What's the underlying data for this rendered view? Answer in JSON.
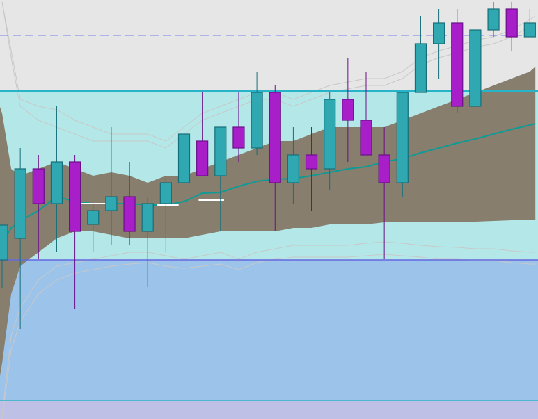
{
  "chart_data": {
    "type": "candlestick",
    "title": "",
    "xlabel": "",
    "ylabel": "",
    "x_index_range": [
      0,
      29.3
    ],
    "ylim": [
      0,
      60.3
    ],
    "grid": false,
    "colors": {
      "background": "#e6e6e6",
      "zone_upper": "#b4e8e8",
      "zone_lower": "#9cc4ea",
      "zone_bottom": "#bfc0e6",
      "zone_line_cyan": "#28b4c8",
      "zone_line_blue": "#6468e0",
      "band_fill": "#877e6e",
      "mid_line": "#0e9b96",
      "outer_guide": "#c8c8c8",
      "up_body": "#2fa8b2",
      "up_border": "#166e78",
      "down_body": "#a81ec8",
      "down_border": "#6a1088",
      "dashed_line": "#7b7ef0",
      "flat_segment": "#ffffff"
    },
    "horizontal_lines": [
      {
        "kind": "dashed",
        "y": 55.2
      },
      {
        "kind": "zone-top",
        "y": 47.2
      },
      {
        "kind": "zone-mid",
        "y": 22.9
      },
      {
        "kind": "zone-bottom",
        "y": 2.7
      }
    ],
    "candles": [
      {
        "x": 0,
        "open": 22.9,
        "high": 27.9,
        "low": 18.9,
        "close": 27.9
      },
      {
        "x": 1,
        "open": 26.0,
        "high": 39.0,
        "low": 12.9,
        "close": 36.0
      },
      {
        "x": 2,
        "open": 36.0,
        "high": 38.0,
        "low": 23.0,
        "close": 31.0
      },
      {
        "x": 3,
        "open": 31.0,
        "high": 45.0,
        "low": 24.0,
        "close": 37.0
      },
      {
        "x": 4,
        "open": 37.0,
        "high": 38.0,
        "low": 15.9,
        "close": 27.0
      },
      {
        "x": 5,
        "open": 28.0,
        "high": 31.0,
        "low": 24.0,
        "close": 30.0
      },
      {
        "x": 6,
        "open": 30.0,
        "high": 42.0,
        "low": 25.0,
        "close": 32.0
      },
      {
        "x": 7,
        "open": 32.0,
        "high": 37.0,
        "low": 25.0,
        "close": 27.0
      },
      {
        "x": 8,
        "open": 27.0,
        "high": 32.0,
        "low": 19.0,
        "close": 31.0
      },
      {
        "x": 9,
        "open": 31.0,
        "high": 35.0,
        "low": 24.0,
        "close": 34.0
      },
      {
        "x": 10,
        "open": 34.0,
        "high": 41.0,
        "low": 26.0,
        "close": 41.0
      },
      {
        "x": 11,
        "open": 40.0,
        "high": 47.0,
        "low": 35.0,
        "close": 35.0
      },
      {
        "x": 12,
        "open": 35.0,
        "high": 42.0,
        "low": 27.0,
        "close": 42.0
      },
      {
        "x": 13,
        "open": 42.0,
        "high": 47.0,
        "low": 37.0,
        "close": 39.0
      },
      {
        "x": 14,
        "open": 39.0,
        "high": 50.0,
        "low": 38.0,
        "close": 47.0
      },
      {
        "x": 15,
        "open": 47.0,
        "high": 48.0,
        "low": 27.0,
        "close": 34.0
      },
      {
        "x": 16,
        "open": 34.0,
        "high": 42.0,
        "low": 31.0,
        "close": 38.0
      },
      {
        "x": 17,
        "open": 38.0,
        "high": 42.0,
        "low": 30.0,
        "close": 36.0
      },
      {
        "x": 18,
        "open": 36.0,
        "high": 47.0,
        "low": 33.0,
        "close": 46.0
      },
      {
        "x": 19,
        "open": 46.0,
        "high": 52.0,
        "low": 37.0,
        "close": 43.0
      },
      {
        "x": 20,
        "open": 43.0,
        "high": 50.0,
        "low": 38.0,
        "close": 38.0
      },
      {
        "x": 21,
        "open": 38.0,
        "high": 42.0,
        "low": 23.0,
        "close": 34.0
      },
      {
        "x": 22,
        "open": 34.0,
        "high": 47.0,
        "low": 32.0,
        "close": 47.0
      },
      {
        "x": 23,
        "open": 47.0,
        "high": 58.0,
        "low": 47.0,
        "close": 54.0
      },
      {
        "x": 24,
        "open": 54.0,
        "high": 59.0,
        "low": 49.0,
        "close": 57.0
      },
      {
        "x": 25,
        "open": 57.0,
        "high": 59.0,
        "low": 44.0,
        "close": 45.0
      },
      {
        "x": 26,
        "open": 45.0,
        "high": 56.0,
        "low": 45.0,
        "close": 56.0
      },
      {
        "x": 27,
        "open": 56.0,
        "high": 60.0,
        "low": 55.0,
        "close": 59.0
      },
      {
        "x": 28,
        "open": 59.0,
        "high": 60.0,
        "low": 53.0,
        "close": 55.0
      },
      {
        "x": 29,
        "open": 55.0,
        "high": 59.0,
        "low": 55.0,
        "close": 57.0
      }
    ],
    "band": {
      "upper": [
        [
          -0.5,
          48
        ],
        [
          0,
          44
        ],
        [
          0.5,
          36
        ],
        [
          1,
          35
        ],
        [
          2,
          36
        ],
        [
          3,
          37
        ],
        [
          4,
          36
        ],
        [
          5,
          35
        ],
        [
          6,
          35.5
        ],
        [
          7,
          35
        ],
        [
          8,
          34
        ],
        [
          9,
          35
        ],
        [
          10,
          35
        ],
        [
          11,
          36
        ],
        [
          12,
          37
        ],
        [
          13,
          38
        ],
        [
          14,
          39
        ],
        [
          15,
          40
        ],
        [
          16,
          40
        ],
        [
          17,
          41
        ],
        [
          18,
          42
        ],
        [
          19,
          42
        ],
        [
          20,
          42
        ],
        [
          21,
          42
        ],
        [
          22,
          43
        ],
        [
          23,
          44
        ],
        [
          24,
          45
        ],
        [
          25,
          46
        ],
        [
          26,
          47
        ],
        [
          27,
          48
        ],
        [
          28,
          49
        ],
        [
          29,
          50
        ],
        [
          29.3,
          50.7
        ]
      ],
      "lower": [
        [
          -0.5,
          0.3
        ],
        [
          0,
          8
        ],
        [
          0.5,
          18
        ],
        [
          1,
          22
        ],
        [
          2,
          24
        ],
        [
          3,
          26
        ],
        [
          4,
          27
        ],
        [
          5,
          27
        ],
        [
          6,
          26.5
        ],
        [
          7,
          26
        ],
        [
          8,
          26
        ],
        [
          9,
          26
        ],
        [
          10,
          26
        ],
        [
          11,
          26.5
        ],
        [
          12,
          27
        ],
        [
          13,
          27
        ],
        [
          14,
          27
        ],
        [
          15,
          27
        ],
        [
          16,
          27.5
        ],
        [
          17,
          27.5
        ],
        [
          18,
          28
        ],
        [
          19,
          28
        ],
        [
          20,
          28
        ],
        [
          21,
          28.3
        ],
        [
          22,
          28.3
        ],
        [
          23,
          28.3
        ],
        [
          24,
          28.3
        ],
        [
          25,
          28.3
        ],
        [
          26,
          28.4
        ],
        [
          27,
          28.5
        ],
        [
          28,
          28.6
        ],
        [
          29,
          28.6
        ],
        [
          29.3,
          28.6
        ]
      ],
      "middle": [
        [
          -0.5,
          24.3
        ],
        [
          0,
          25.3
        ],
        [
          0.5,
          27.5
        ],
        [
          1,
          28.5
        ],
        [
          2,
          30
        ],
        [
          3,
          32
        ],
        [
          4,
          31.3
        ],
        [
          5,
          31
        ],
        [
          6,
          31
        ],
        [
          7,
          31
        ],
        [
          8,
          30.8
        ],
        [
          9,
          30.8
        ],
        [
          10,
          31.3
        ],
        [
          11,
          32.5
        ],
        [
          12,
          32.6
        ],
        [
          13,
          33.5
        ],
        [
          14,
          34.2
        ],
        [
          15,
          34.5
        ],
        [
          16,
          34.6
        ],
        [
          17,
          35
        ],
        [
          18,
          35.5
        ],
        [
          19,
          36
        ],
        [
          20,
          36.3
        ],
        [
          21,
          37
        ],
        [
          22,
          37.5
        ],
        [
          23,
          38.3
        ],
        [
          24,
          39
        ],
        [
          25,
          39.7
        ],
        [
          26,
          40.3
        ],
        [
          27,
          41
        ],
        [
          28,
          41.7
        ],
        [
          29,
          42.3
        ],
        [
          29.3,
          42.5
        ]
      ]
    },
    "outer_guides": {
      "upper_guide": [
        [
          0,
          60
        ],
        [
          0.5,
          52
        ],
        [
          1,
          45
        ],
        [
          2,
          43
        ],
        [
          3,
          42
        ],
        [
          4,
          41
        ],
        [
          5,
          40
        ],
        [
          6,
          40
        ],
        [
          7,
          40
        ],
        [
          8,
          40
        ],
        [
          9,
          39
        ],
        [
          10,
          41
        ],
        [
          11,
          43
        ],
        [
          12,
          44
        ],
        [
          13,
          45
        ],
        [
          14,
          46
        ],
        [
          15,
          46
        ],
        [
          16,
          45
        ],
        [
          17,
          46
        ],
        [
          18,
          47
        ],
        [
          19,
          47.5
        ],
        [
          20,
          48
        ],
        [
          21,
          48
        ],
        [
          22,
          49
        ],
        [
          23,
          51
        ],
        [
          24,
          52
        ],
        [
          25,
          52.7
        ],
        [
          26,
          53.5
        ],
        [
          27,
          54
        ],
        [
          28,
          55
        ],
        [
          29,
          56.5
        ],
        [
          29.3,
          57
        ]
      ],
      "upper_guide_2": [
        [
          0,
          60
        ],
        [
          0.5,
          53
        ],
        [
          1,
          46
        ],
        [
          2,
          45
        ],
        [
          3,
          44.5
        ],
        [
          4,
          43
        ],
        [
          5,
          42
        ],
        [
          6,
          41
        ],
        [
          7,
          41
        ],
        [
          8,
          41
        ],
        [
          9,
          40
        ],
        [
          10,
          42
        ],
        [
          11,
          44
        ],
        [
          12,
          45
        ],
        [
          13,
          46
        ],
        [
          14,
          47
        ],
        [
          15,
          47
        ],
        [
          16,
          46
        ],
        [
          17,
          47
        ],
        [
          18,
          48
        ],
        [
          19,
          48.5
        ],
        [
          20,
          49
        ],
        [
          21,
          49
        ],
        [
          22,
          50
        ],
        [
          23,
          52
        ],
        [
          24,
          53
        ],
        [
          25,
          53.7
        ],
        [
          26,
          54.5
        ],
        [
          27,
          55
        ],
        [
          28,
          56
        ],
        [
          29,
          57.5
        ],
        [
          29.3,
          58
        ]
      ],
      "lower_guide": [
        [
          0,
          0.5
        ],
        [
          0.5,
          12
        ],
        [
          1,
          16
        ],
        [
          2,
          20
        ],
        [
          3,
          22
        ],
        [
          4,
          22.5
        ],
        [
          5,
          23
        ],
        [
          6,
          23.5
        ],
        [
          7,
          24
        ],
        [
          8,
          24
        ],
        [
          9,
          23.5
        ],
        [
          10,
          23
        ],
        [
          11,
          23.5
        ],
        [
          12,
          24
        ],
        [
          13,
          23
        ],
        [
          14,
          24
        ],
        [
          15,
          24.5
        ],
        [
          16,
          25
        ],
        [
          17,
          25
        ],
        [
          18,
          25
        ],
        [
          19,
          25
        ],
        [
          20,
          25.3
        ],
        [
          21,
          25.5
        ],
        [
          22,
          25.3
        ],
        [
          23,
          25
        ],
        [
          24,
          24.8
        ],
        [
          25,
          24.7
        ],
        [
          26,
          24.5
        ],
        [
          27,
          24.5
        ],
        [
          28,
          24.2
        ],
        [
          29,
          24
        ],
        [
          29.3,
          24
        ]
      ],
      "lower_guide_2": [
        [
          0,
          0
        ],
        [
          0.5,
          10
        ],
        [
          1,
          14
        ],
        [
          2,
          18
        ],
        [
          3,
          20
        ],
        [
          4,
          21
        ],
        [
          5,
          21.5
        ],
        [
          6,
          22
        ],
        [
          7,
          22.3
        ],
        [
          8,
          22.5
        ],
        [
          9,
          22
        ],
        [
          10,
          21.7
        ],
        [
          11,
          22
        ],
        [
          12,
          22.3
        ],
        [
          13,
          21.5
        ],
        [
          14,
          22.5
        ],
        [
          15,
          23
        ],
        [
          16,
          23.3
        ],
        [
          17,
          23.3
        ],
        [
          18,
          23.3
        ],
        [
          19,
          23.3
        ],
        [
          20,
          23.5
        ],
        [
          21,
          23.7
        ],
        [
          22,
          23.5
        ],
        [
          23,
          23.3
        ],
        [
          24,
          23
        ],
        [
          25,
          23
        ],
        [
          26,
          22.8
        ],
        [
          27,
          22.8
        ],
        [
          28,
          22.5
        ],
        [
          29,
          22.3
        ],
        [
          29.3,
          22.3
        ]
      ]
    }
  }
}
